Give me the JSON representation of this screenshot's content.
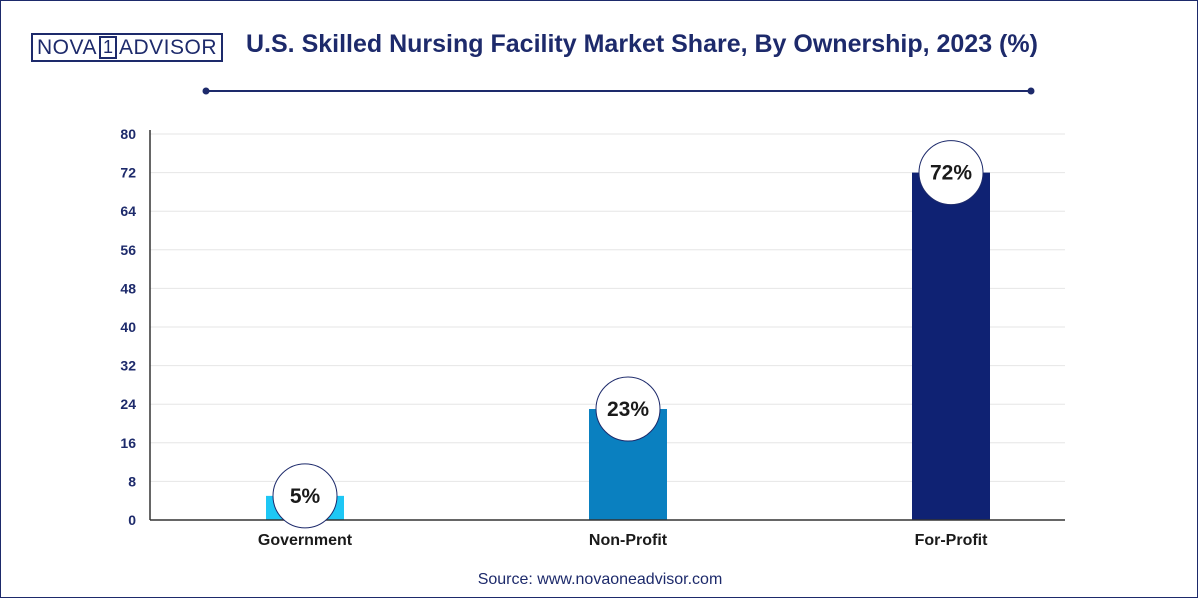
{
  "brand": {
    "left": "NOVA",
    "num": "1",
    "right": "ADVISOR"
  },
  "title": "U.S. Skilled Nursing Facility Market Share, By Ownership, 2023 (%)",
  "source": "Source: www.novaoneadvisor.com",
  "colors": {
    "navy": "#1d2a6b",
    "government": "#1ec7f5",
    "nonprofit": "#0a80c0",
    "forprofit": "#0f2273",
    "grid": "#e6e6e6"
  },
  "chart_data": {
    "type": "bar",
    "categories": [
      "Government",
      "Non-Profit",
      "For-Profit"
    ],
    "values": [
      5,
      23,
      72
    ],
    "data_labels": [
      "5%",
      "23%",
      "72%"
    ],
    "ylim": [
      0,
      80
    ],
    "yticks": [
      0,
      8,
      16,
      24,
      32,
      40,
      48,
      56,
      64,
      72,
      80
    ],
    "grid": true,
    "xlabel": "",
    "ylabel": ""
  }
}
